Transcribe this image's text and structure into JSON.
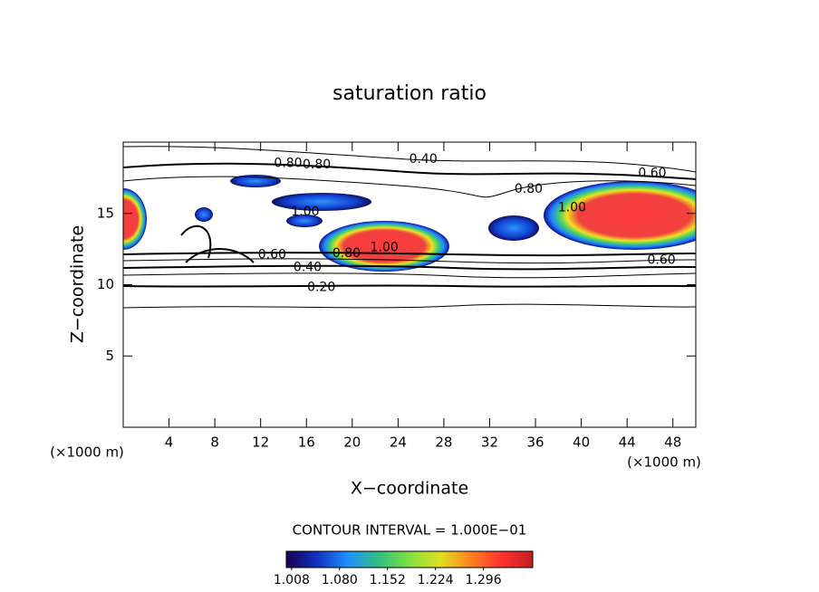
{
  "chart_data": {
    "type": "contour",
    "title": "saturation ratio",
    "x_label": "X−coordinate",
    "y_label": "Z−coordinate",
    "x_unit": "(×1000 m)",
    "y_unit": "(×1000 m)",
    "xlim": [
      0,
      50
    ],
    "ylim": [
      0,
      20
    ],
    "xticks": [
      4,
      8,
      12,
      16,
      20,
      24,
      28,
      32,
      36,
      40,
      44,
      48
    ],
    "yticks": [
      5,
      10,
      15
    ],
    "contour_interval": "CONTOUR INTERVAL = 1.000E−01",
    "contour_labels": [
      {
        "value": 0.8,
        "label": "0.80",
        "x": 14.4,
        "z": 18.5
      },
      {
        "value": 0.8,
        "label": "0.80",
        "x": 16.9,
        "z": 18.4
      },
      {
        "value": 0.4,
        "label": "0.40",
        "x": 26.2,
        "z": 18.8
      },
      {
        "value": 0.6,
        "label": "0.60",
        "x": 46.2,
        "z": 17.8
      },
      {
        "value": 0.8,
        "label": "0.80",
        "x": 35.4,
        "z": 16.7
      },
      {
        "value": 1.0,
        "label": "1.00",
        "x": 15.9,
        "z": 15.1
      },
      {
        "value": 1.0,
        "label": "1.00",
        "x": 39.2,
        "z": 15.4
      },
      {
        "value": 1.0,
        "label": "1.00",
        "x": 22.8,
        "z": 12.6
      },
      {
        "value": 0.8,
        "label": "0.80",
        "x": 19.5,
        "z": 12.2
      },
      {
        "value": 0.6,
        "label": "0.60",
        "x": 13.0,
        "z": 12.1
      },
      {
        "value": 0.4,
        "label": "0.40",
        "x": 16.1,
        "z": 11.2
      },
      {
        "value": 0.2,
        "label": "0.20",
        "x": 17.3,
        "z": 9.8
      },
      {
        "value": 0.6,
        "label": "0.60",
        "x": 47.0,
        "z": 11.7
      }
    ],
    "colorbar": {
      "lim": [
        1.0,
        1.37
      ],
      "colors": [
        "#1a0050",
        "#1030c0",
        "#2090ff",
        "#30c080",
        "#80e040",
        "#e0e020",
        "#ff8020",
        "#ff3030",
        "#c02020"
      ],
      "ticks": [
        1.008,
        {
          "value": 1.08,
          "label": "1.080"
        },
        1.152,
        1.224,
        1.296
      ]
    }
  }
}
